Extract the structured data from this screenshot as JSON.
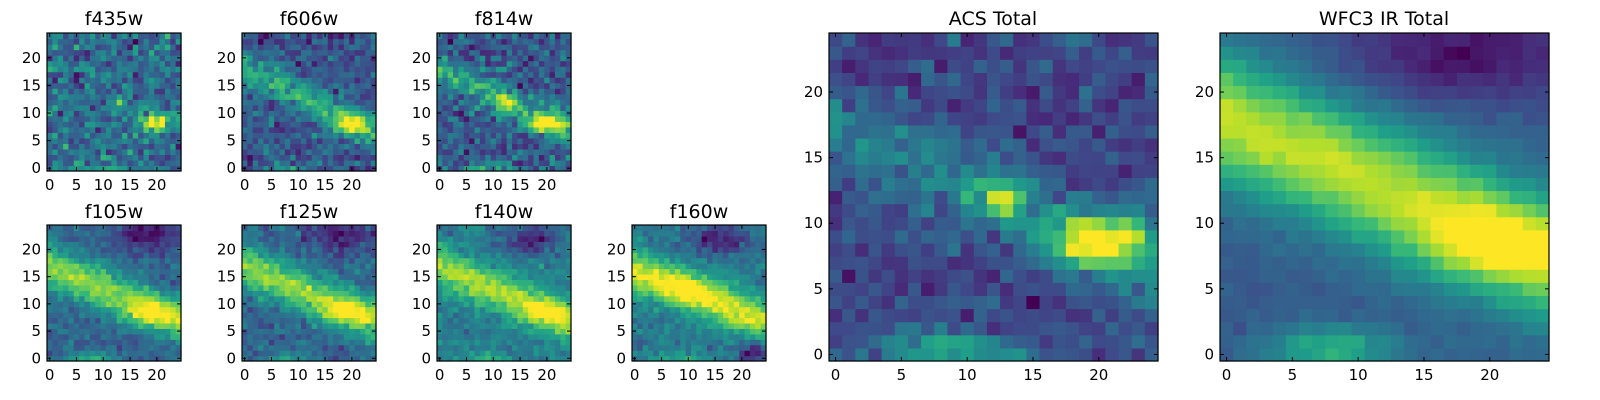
{
  "figure": {
    "description_none": ""
  },
  "chart_data": [
    {
      "type": "heatmap",
      "title": "f435w",
      "grid": false,
      "colormap": "viridis",
      "x_ticks": [
        "0",
        "5",
        "10",
        "15",
        "20"
      ],
      "y_ticks": [
        "0",
        "5",
        "10",
        "15",
        "20"
      ],
      "xlim": [
        -0.5,
        24.5
      ],
      "ylim": [
        -0.5,
        24.5
      ],
      "n_cols": 25,
      "n_rows": 25,
      "seed": 11,
      "noise": 0.75,
      "features": [
        {
          "type": "blob",
          "cx": 20,
          "cy": 8.5,
          "sx": 2.3,
          "sy": 1.2,
          "amp": 1.3
        },
        {
          "type": "blob",
          "cx": 13,
          "cy": 12,
          "sx": 1.1,
          "sy": 0.9,
          "amp": 0.8
        },
        {
          "type": "blob",
          "cx": 8,
          "cy": 0,
          "sx": 3,
          "sy": 0.8,
          "amp": 0.6
        }
      ]
    },
    {
      "type": "heatmap",
      "title": "f606w",
      "grid": false,
      "colormap": "viridis",
      "x_ticks": [
        "0",
        "5",
        "10",
        "15",
        "20"
      ],
      "y_ticks": [
        "0",
        "5",
        "10",
        "15",
        "20"
      ],
      "xlim": [
        -0.5,
        24.5
      ],
      "ylim": [
        -0.5,
        24.5
      ],
      "n_cols": 25,
      "n_rows": 25,
      "seed": 23,
      "noise": 0.6,
      "features": [
        {
          "type": "band",
          "x0": 0,
          "y0": 18,
          "x1": 24,
          "y1": 7,
          "width": 2.0,
          "amp": 0.8
        },
        {
          "type": "blob",
          "cx": 20,
          "cy": 8,
          "sx": 2.5,
          "sy": 1.3,
          "amp": 1.0
        },
        {
          "type": "blob",
          "cx": 8,
          "cy": 0,
          "sx": 3,
          "sy": 0.8,
          "amp": 0.6
        }
      ]
    },
    {
      "type": "heatmap",
      "title": "f814w",
      "grid": false,
      "colormap": "viridis",
      "x_ticks": [
        "0",
        "5",
        "10",
        "15",
        "20"
      ],
      "y_ticks": [
        "0",
        "5",
        "10",
        "15",
        "20"
      ],
      "xlim": [
        -0.5,
        24.5
      ],
      "ylim": [
        -0.5,
        24.5
      ],
      "n_cols": 25,
      "n_rows": 25,
      "seed": 37,
      "noise": 0.65,
      "features": [
        {
          "type": "band",
          "x0": 0,
          "y0": 18,
          "x1": 24,
          "y1": 7,
          "width": 1.8,
          "amp": 0.6
        },
        {
          "type": "blob",
          "cx": 20,
          "cy": 8,
          "sx": 2.5,
          "sy": 1.2,
          "amp": 1.1
        },
        {
          "type": "blob",
          "cx": 12.5,
          "cy": 12,
          "sx": 1.2,
          "sy": 1.0,
          "amp": 0.9
        },
        {
          "type": "blob",
          "cx": 8,
          "cy": 0,
          "sx": 3,
          "sy": 0.8,
          "amp": 0.6
        }
      ]
    },
    {
      "type": "heatmap",
      "title": "f105w",
      "grid": false,
      "colormap": "viridis",
      "x_ticks": [
        "0",
        "5",
        "10",
        "15",
        "20"
      ],
      "y_ticks": [
        "0",
        "5",
        "10",
        "15",
        "20"
      ],
      "xlim": [
        -0.5,
        24.5
      ],
      "ylim": [
        -0.5,
        24.5
      ],
      "n_cols": 25,
      "n_rows": 25,
      "seed": 41,
      "noise": 0.35,
      "features": [
        {
          "type": "band",
          "x0": 0,
          "y0": 17,
          "x1": 24,
          "y1": 7,
          "width": 2.6,
          "amp": 1.0
        },
        {
          "type": "blob",
          "cx": 19,
          "cy": 8.5,
          "sx": 3.5,
          "sy": 1.5,
          "amp": 0.6
        },
        {
          "type": "blob",
          "cx": 8,
          "cy": 0,
          "sx": 3,
          "sy": 0.8,
          "amp": 0.6
        },
        {
          "type": "blob",
          "cx": 18,
          "cy": 23,
          "sx": 4,
          "sy": 2,
          "amp": -0.6
        }
      ]
    },
    {
      "type": "heatmap",
      "title": "f125w",
      "grid": false,
      "colormap": "viridis",
      "x_ticks": [
        "0",
        "5",
        "10",
        "15",
        "20"
      ],
      "y_ticks": [
        "0",
        "5",
        "10",
        "15",
        "20"
      ],
      "xlim": [
        -0.5,
        24.5
      ],
      "ylim": [
        -0.5,
        24.5
      ],
      "n_cols": 25,
      "n_rows": 25,
      "seed": 53,
      "noise": 0.4,
      "features": [
        {
          "type": "band",
          "x0": 0,
          "y0": 17,
          "x1": 24,
          "y1": 7,
          "width": 2.6,
          "amp": 1.0
        },
        {
          "type": "blob",
          "cx": 19,
          "cy": 8.5,
          "sx": 3.5,
          "sy": 1.5,
          "amp": 0.6
        },
        {
          "type": "blob",
          "cx": 8,
          "cy": 0,
          "sx": 3,
          "sy": 0.8,
          "amp": 0.5
        },
        {
          "type": "blob",
          "cx": 18,
          "cy": 23,
          "sx": 4,
          "sy": 2,
          "amp": -0.5
        }
      ]
    },
    {
      "type": "heatmap",
      "title": "f140w",
      "grid": false,
      "colormap": "viridis",
      "x_ticks": [
        "0",
        "5",
        "10",
        "15",
        "20"
      ],
      "y_ticks": [
        "0",
        "5",
        "10",
        "15",
        "20"
      ],
      "xlim": [
        -0.5,
        24.5
      ],
      "ylim": [
        -0.5,
        24.5
      ],
      "n_cols": 25,
      "n_rows": 25,
      "seed": 67,
      "noise": 0.4,
      "features": [
        {
          "type": "band",
          "x0": 0,
          "y0": 17,
          "x1": 24,
          "y1": 7,
          "width": 2.4,
          "amp": 1.1
        },
        {
          "type": "blob",
          "cx": 20,
          "cy": 8.5,
          "sx": 3,
          "sy": 1.4,
          "amp": 0.7
        },
        {
          "type": "blob",
          "cx": 8,
          "cy": 0,
          "sx": 3,
          "sy": 0.8,
          "amp": 0.5
        },
        {
          "type": "blob",
          "cx": 17,
          "cy": 22,
          "sx": 4,
          "sy": 2,
          "amp": -0.7
        }
      ]
    },
    {
      "type": "heatmap",
      "title": "f160w",
      "grid": false,
      "colormap": "viridis",
      "x_ticks": [
        "0",
        "5",
        "10",
        "15",
        "20"
      ],
      "y_ticks": [
        "0",
        "5",
        "10",
        "15",
        "20"
      ],
      "xlim": [
        -0.5,
        24.5
      ],
      "ylim": [
        -0.5,
        24.5
      ],
      "n_cols": 25,
      "n_rows": 25,
      "seed": 79,
      "noise": 0.4,
      "features": [
        {
          "type": "band",
          "x0": 0,
          "y0": 16,
          "x1": 24,
          "y1": 7,
          "width": 2.4,
          "amp": 1.2
        },
        {
          "type": "blob",
          "cx": 10,
          "cy": 13,
          "sx": 4,
          "sy": 2,
          "amp": 0.5
        },
        {
          "type": "blob",
          "cx": 8,
          "cy": 0,
          "sx": 3,
          "sy": 0.8,
          "amp": 0.4
        },
        {
          "type": "blob",
          "cx": 16,
          "cy": 22,
          "sx": 4,
          "sy": 2,
          "amp": -0.8
        },
        {
          "type": "blob",
          "cx": 22,
          "cy": 1,
          "sx": 2,
          "sy": 1.5,
          "amp": -0.8
        }
      ]
    },
    {
      "type": "heatmap",
      "title": "ACS Total",
      "grid": false,
      "colormap": "viridis",
      "x_ticks": [
        "0",
        "5",
        "10",
        "15",
        "20"
      ],
      "y_ticks": [
        "0",
        "5",
        "10",
        "15",
        "20"
      ],
      "xlim": [
        -0.5,
        24.5
      ],
      "ylim": [
        -0.5,
        24.5
      ],
      "n_cols": 25,
      "n_rows": 25,
      "seed": 97,
      "noise": 0.45,
      "features": [
        {
          "type": "band",
          "x0": 0,
          "y0": 17,
          "x1": 24,
          "y1": 7,
          "width": 2.2,
          "amp": 0.45
        },
        {
          "type": "blob",
          "cx": 20,
          "cy": 8.5,
          "sx": 2.6,
          "sy": 1.4,
          "amp": 1.4
        },
        {
          "type": "blob",
          "cx": 12.5,
          "cy": 12,
          "sx": 1.3,
          "sy": 1.0,
          "amp": 0.9
        },
        {
          "type": "blob",
          "cx": 8,
          "cy": 0.5,
          "sx": 3.5,
          "sy": 1.0,
          "amp": 0.8
        }
      ]
    },
    {
      "type": "heatmap",
      "title": "WFC3 IR Total",
      "grid": false,
      "colormap": "viridis",
      "x_ticks": [
        "0",
        "5",
        "10",
        "15",
        "20"
      ],
      "y_ticks": [
        "0",
        "5",
        "10",
        "15",
        "20"
      ],
      "xlim": [
        -0.5,
        24.5
      ],
      "ylim": [
        -0.5,
        24.5
      ],
      "n_cols": 25,
      "n_rows": 25,
      "seed": 113,
      "noise": 0.12,
      "features": [
        {
          "type": "band",
          "x0": 0,
          "y0": 18,
          "x1": 24,
          "y1": 7.5,
          "width": 3.2,
          "amp": 1.3
        },
        {
          "type": "blob",
          "cx": 20,
          "cy": 8.5,
          "sx": 3.5,
          "sy": 1.8,
          "amp": 0.6
        },
        {
          "type": "blob",
          "cx": 8,
          "cy": 0.5,
          "sx": 3.5,
          "sy": 1.2,
          "amp": 0.7
        },
        {
          "type": "blob",
          "cx": 18,
          "cy": 23,
          "sx": 6,
          "sy": 2.5,
          "amp": -0.5
        }
      ]
    }
  ]
}
